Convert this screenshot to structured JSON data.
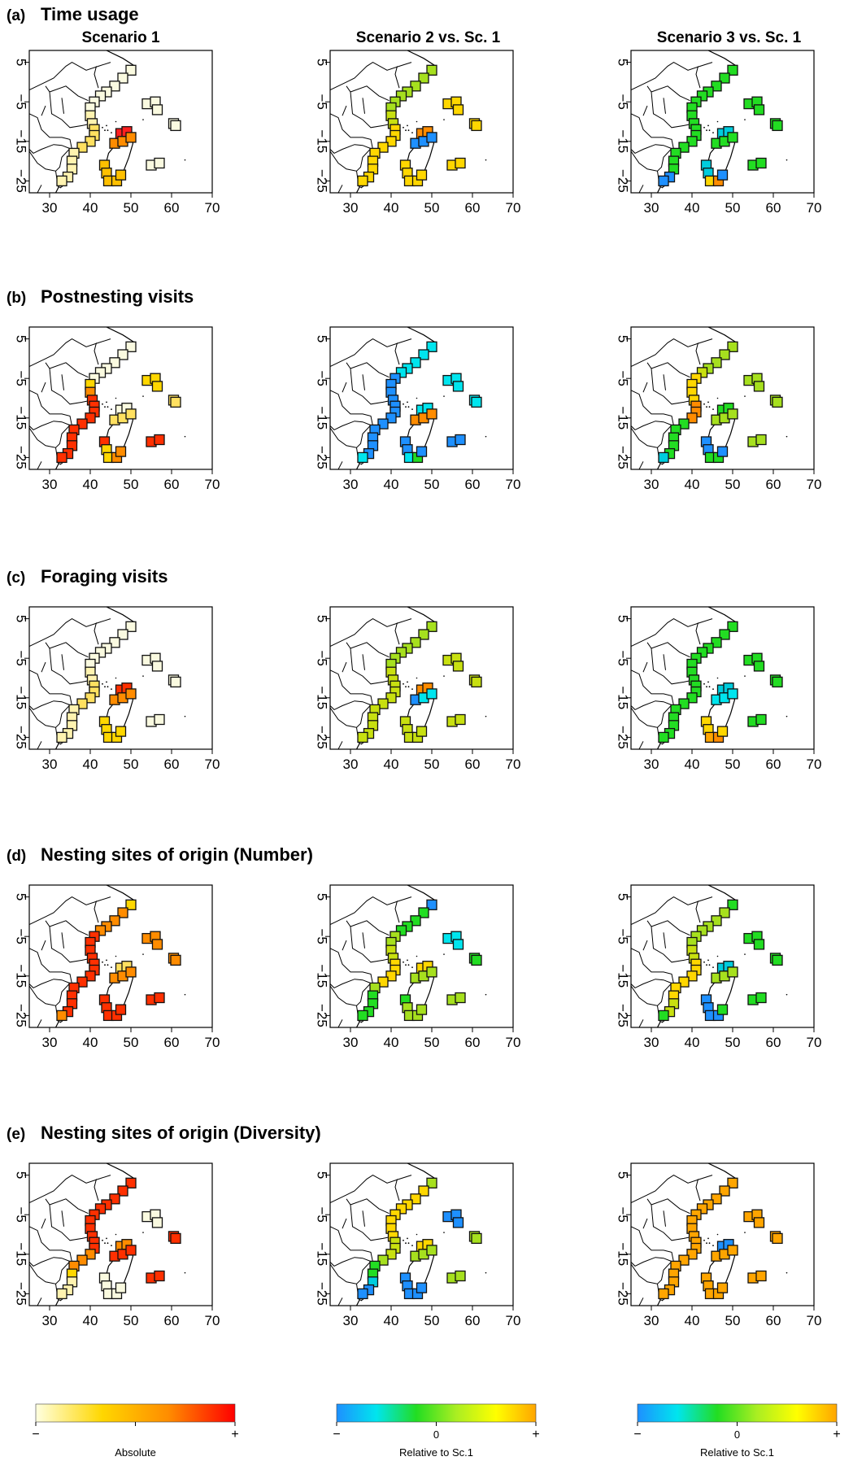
{
  "figure": {
    "column_titles": [
      "Scenario 1",
      "Scenario 2 vs. Sc. 1",
      "Scenario 3 vs. Sc. 1"
    ],
    "rows": [
      {
        "letter": "(a)",
        "title": "Time usage"
      },
      {
        "letter": "(b)",
        "title": "Postnesting visits"
      },
      {
        "letter": "(c)",
        "title": "Foraging visits"
      },
      {
        "letter": "(d)",
        "title": "Nesting sites of origin (Number)"
      },
      {
        "letter": "(e)",
        "title": "Nesting sites of origin (Diversity)"
      }
    ],
    "x_ticks": [
      "30",
      "40",
      "50",
      "60",
      "70"
    ],
    "y_ticks": [
      "5",
      "−5",
      "−15",
      "−25"
    ],
    "colorbars": [
      {
        "label": "Absolute",
        "minus": "−",
        "mid": "",
        "plus": "+",
        "colors": [
          "#ffffe0",
          "#ffd700",
          "#ff8c00",
          "#ff0000"
        ]
      },
      {
        "label": "Relative to Sc.1",
        "minus": "−",
        "mid": "0",
        "plus": "+",
        "colors": [
          "#1e90ff",
          "#00e5ee",
          "#22dd22",
          "#aaee22",
          "#ffff00",
          "#ffa500"
        ]
      },
      {
        "label": "Relative to Sc.1",
        "minus": "−",
        "mid": "0",
        "plus": "+",
        "colors": [
          "#1e90ff",
          "#00e5ee",
          "#22dd22",
          "#aaee22",
          "#ffff00",
          "#ffa500"
        ]
      }
    ]
  },
  "map_data": {
    "x_range": [
      25,
      70
    ],
    "y_range": [
      -28,
      8
    ],
    "grid_cells": [
      {
        "id": "c1",
        "lon": 50.0,
        "lat": 3.0
      },
      {
        "id": "c2",
        "lon": 48.0,
        "lat": 1.0
      },
      {
        "id": "c3",
        "lon": 46.0,
        "lat": -1.0
      },
      {
        "id": "c4",
        "lon": 44.0,
        "lat": -2.5
      },
      {
        "id": "c5",
        "lon": 42.5,
        "lat": -3.5
      },
      {
        "id": "c6",
        "lon": 41.0,
        "lat": -5.0
      },
      {
        "id": "c7",
        "lon": 40.0,
        "lat": -6.5
      },
      {
        "id": "c8",
        "lon": 40.0,
        "lat": -8.5
      },
      {
        "id": "c9",
        "lon": 40.5,
        "lat": -10.5
      },
      {
        "id": "c10",
        "lon": 41.0,
        "lat": -12.0
      },
      {
        "id": "c11",
        "lon": 41.0,
        "lat": -13.5
      },
      {
        "id": "c12",
        "lon": 40.0,
        "lat": -15.0
      },
      {
        "id": "c13",
        "lon": 38.0,
        "lat": -16.5
      },
      {
        "id": "c14",
        "lon": 36.0,
        "lat": -18.0
      },
      {
        "id": "c15",
        "lon": 35.5,
        "lat": -20.0
      },
      {
        "id": "c16",
        "lon": 35.5,
        "lat": -22.0
      },
      {
        "id": "c17",
        "lon": 34.5,
        "lat": -24.0
      },
      {
        "id": "c18",
        "lon": 33.0,
        "lat": -25.0
      },
      {
        "id": "c19",
        "lon": 43.5,
        "lat": -21.0
      },
      {
        "id": "c20",
        "lon": 44.0,
        "lat": -23.0
      },
      {
        "id": "c21",
        "lon": 44.5,
        "lat": -25.0
      },
      {
        "id": "c22",
        "lon": 46.5,
        "lat": -25.0
      },
      {
        "id": "c23",
        "lon": 47.5,
        "lat": -23.5
      },
      {
        "id": "c24",
        "lon": 47.5,
        "lat": -13.0
      },
      {
        "id": "c25",
        "lon": 49.0,
        "lat": -12.5
      },
      {
        "id": "c26",
        "lon": 46.0,
        "lat": -15.5
      },
      {
        "id": "c27",
        "lon": 48.0,
        "lat": -15.0
      },
      {
        "id": "c28",
        "lon": 50.0,
        "lat": -14.0
      },
      {
        "id": "c29",
        "lon": 54.0,
        "lat": -5.5
      },
      {
        "id": "c30",
        "lon": 56.0,
        "lat": -5.0
      },
      {
        "id": "c31",
        "lon": 56.5,
        "lat": -7.0
      },
      {
        "id": "c32",
        "lon": 60.5,
        "lat": -10.5
      },
      {
        "id": "c33",
        "lon": 61.0,
        "lat": -11.0
      },
      {
        "id": "c34",
        "lon": 55.0,
        "lat": -21.0
      },
      {
        "id": "c35",
        "lon": 57.0,
        "lat": -20.5
      }
    ],
    "panel_colors": [
      [
        [
          "#fafae0",
          "#fafae0",
          "#fafae0",
          "#fafae0",
          "#fafae0",
          "#fafae0",
          "#fafae0",
          "#fff3b0",
          "#fff3b0",
          "#ffe060",
          "#ffe060",
          "#ffe060",
          "#ffe060",
          "#fff3b0",
          "#fff3b0",
          "#fff3b0",
          "#fff3b0",
          "#fff3b0",
          "#ffc000",
          "#ffc000",
          "#ffc000",
          "#ffc000",
          "#ffc000",
          "#ff2020",
          "#ff2020",
          "#ff8c00",
          "#ff8c00",
          "#ff8c00",
          "#fafae0",
          "#fafae0",
          "#fafae0",
          "#fafae0",
          "#fafae0",
          "#fafae0",
          "#fafae0"
        ],
        [
          "#a6e01e",
          "#a6e01e",
          "#a6e01e",
          "#a6e01e",
          "#a6e01e",
          "#a6e01e",
          "#a6e01e",
          "#c8e010",
          "#c8e010",
          "#ffd700",
          "#ffd700",
          "#ffd700",
          "#ffd700",
          "#ffd700",
          "#ffd700",
          "#ffd700",
          "#ffd700",
          "#ffd700",
          "#ffd700",
          "#ffd700",
          "#ffd700",
          "#ffd700",
          "#ffd700",
          "#ff8c00",
          "#ff8c00",
          "#1e90ff",
          "#1e90ff",
          "#1e90ff",
          "#ffd700",
          "#ffd700",
          "#ffd700",
          "#ffd700",
          "#ffd700",
          "#ffd700",
          "#ffd700"
        ],
        [
          "#22dd22",
          "#22dd22",
          "#22dd22",
          "#22dd22",
          "#22dd22",
          "#22dd22",
          "#22dd22",
          "#22dd22",
          "#22dd22",
          "#22dd22",
          "#22dd22",
          "#22dd22",
          "#22dd22",
          "#22dd22",
          "#22dd22",
          "#22dd22",
          "#1e90ff",
          "#1e90ff",
          "#00ccdd",
          "#00ccdd",
          "#ffd700",
          "#ff8c00",
          "#1e90ff",
          "#00ccdd",
          "#00ccdd",
          "#22dd22",
          "#22dd22",
          "#22dd22",
          "#22dd22",
          "#22dd22",
          "#22dd22",
          "#22dd22",
          "#22dd22",
          "#22dd22",
          "#22dd22"
        ]
      ],
      [
        [
          "#fafae0",
          "#fafae0",
          "#fafae0",
          "#fafae0",
          "#fafae0",
          "#fafae0",
          "#ffd700",
          "#ff8c00",
          "#ff3000",
          "#ff3000",
          "#ff3000",
          "#ff3000",
          "#ff3000",
          "#ff3000",
          "#ff3000",
          "#ff3000",
          "#ff3000",
          "#ff3000",
          "#ff3000",
          "#ffd700",
          "#ffd700",
          "#ff8c00",
          "#ff8c00",
          "#fafae0",
          "#fafae0",
          "#ffe060",
          "#ffe060",
          "#ffe060",
          "#ffd700",
          "#ffd700",
          "#ffd700",
          "#ffe060",
          "#ffe060",
          "#ff3000",
          "#ff3000"
        ],
        [
          "#00e5ee",
          "#00e5ee",
          "#00e5ee",
          "#00e5ee",
          "#00e5ee",
          "#1e90ff",
          "#1e90ff",
          "#1e90ff",
          "#1e90ff",
          "#1e90ff",
          "#1e90ff",
          "#1e90ff",
          "#1e90ff",
          "#1e90ff",
          "#1e90ff",
          "#1e90ff",
          "#1e90ff",
          "#00e5ee",
          "#1e90ff",
          "#1e90ff",
          "#00e5ee",
          "#22dd22",
          "#1e90ff",
          "#00e5ee",
          "#00e5ee",
          "#ff8c00",
          "#ff8c00",
          "#ff8c00",
          "#00e5ee",
          "#00e5ee",
          "#00e5ee",
          "#00e5ee",
          "#00e5ee",
          "#1e90ff",
          "#1e90ff"
        ],
        [
          "#a6e01e",
          "#a6e01e",
          "#a6e01e",
          "#a6e01e",
          "#c8e010",
          "#ffd700",
          "#ffd700",
          "#ffd700",
          "#ffd700",
          "#ff8c00",
          "#ff8c00",
          "#ff8c00",
          "#22dd22",
          "#22dd22",
          "#22dd22",
          "#22dd22",
          "#22dd22",
          "#00ccdd",
          "#1e90ff",
          "#1e90ff",
          "#22dd22",
          "#22dd22",
          "#1e90ff",
          "#22dd22",
          "#22dd22",
          "#a6e01e",
          "#a6e01e",
          "#a6e01e",
          "#a6e01e",
          "#a6e01e",
          "#a6e01e",
          "#a6e01e",
          "#a6e01e",
          "#a6e01e",
          "#a6e01e"
        ]
      ],
      [
        [
          "#fafae0",
          "#fafae0",
          "#fafae0",
          "#fafae0",
          "#fafae0",
          "#fafae0",
          "#fafae0",
          "#fff3b0",
          "#fff3b0",
          "#ffe060",
          "#ffe060",
          "#ffe060",
          "#ffe060",
          "#fff3b0",
          "#fff3b0",
          "#fff3b0",
          "#fff3b0",
          "#fff3b0",
          "#ffd700",
          "#ffd700",
          "#ffd700",
          "#ffd700",
          "#ffd700",
          "#ff3000",
          "#ff3000",
          "#ff8c00",
          "#ff8c00",
          "#ff8c00",
          "#fafae0",
          "#fafae0",
          "#fafae0",
          "#fafae0",
          "#fafae0",
          "#fafae0",
          "#fafae0"
        ],
        [
          "#a6e01e",
          "#a6e01e",
          "#a6e01e",
          "#a6e01e",
          "#a6e01e",
          "#a6e01e",
          "#a6e01e",
          "#c8e010",
          "#c8e010",
          "#c8e010",
          "#c8e010",
          "#c8e010",
          "#c8e010",
          "#c8e010",
          "#c8e010",
          "#c8e010",
          "#c8e010",
          "#c8e010",
          "#c8e010",
          "#c8e010",
          "#c8e010",
          "#c8e010",
          "#c8e010",
          "#ff8c00",
          "#ff8c00",
          "#1e90ff",
          "#00e5ee",
          "#00e5ee",
          "#c8e010",
          "#c8e010",
          "#c8e010",
          "#c8e010",
          "#c8e010",
          "#c8e010",
          "#c8e010"
        ],
        [
          "#22dd22",
          "#22dd22",
          "#22dd22",
          "#22dd22",
          "#22dd22",
          "#22dd22",
          "#22dd22",
          "#22dd22",
          "#22dd22",
          "#22dd22",
          "#22dd22",
          "#22dd22",
          "#22dd22",
          "#22dd22",
          "#22dd22",
          "#22dd22",
          "#22dd22",
          "#22dd22",
          "#ffd700",
          "#ffd700",
          "#ffa500",
          "#ff8c00",
          "#ffd700",
          "#00ccdd",
          "#00ccdd",
          "#00e5ee",
          "#00e5ee",
          "#00e5ee",
          "#22dd22",
          "#22dd22",
          "#22dd22",
          "#22dd22",
          "#22dd22",
          "#22dd22",
          "#22dd22"
        ]
      ],
      [
        [
          "#ffd700",
          "#ff8c00",
          "#ff8c00",
          "#ff8c00",
          "#ff8c00",
          "#ff3000",
          "#ff3000",
          "#ff3000",
          "#ff3000",
          "#ff3000",
          "#ff3000",
          "#ff3000",
          "#ff3000",
          "#ff3000",
          "#ff3000",
          "#ff3000",
          "#ff3000",
          "#ff8c00",
          "#ff3000",
          "#ff3000",
          "#ff3000",
          "#ff3000",
          "#ff3000",
          "#ffe060",
          "#ffe060",
          "#ff8c00",
          "#ff8c00",
          "#ff8c00",
          "#ff8c00",
          "#ff8c00",
          "#ff8c00",
          "#ff8c00",
          "#ff8c00",
          "#ff3000",
          "#ff3000"
        ],
        [
          "#1e90ff",
          "#22dd22",
          "#22dd22",
          "#22dd22",
          "#22dd22",
          "#a6e01e",
          "#a6e01e",
          "#c8e010",
          "#c8e010",
          "#ffd700",
          "#ffd700",
          "#ffd700",
          "#ffd700",
          "#a6e01e",
          "#22dd22",
          "#22dd22",
          "#22dd22",
          "#22dd22",
          "#22dd22",
          "#a6e01e",
          "#a6e01e",
          "#a6e01e",
          "#a6e01e",
          "#ffd700",
          "#ffd700",
          "#a6e01e",
          "#a6e01e",
          "#a6e01e",
          "#00e5ee",
          "#00e5ee",
          "#00e5ee",
          "#22dd22",
          "#22dd22",
          "#a6e01e",
          "#a6e01e"
        ],
        [
          "#22dd22",
          "#a6e01e",
          "#a6e01e",
          "#a6e01e",
          "#a6e01e",
          "#a6e01e",
          "#a6e01e",
          "#c8e010",
          "#c8e010",
          "#ffd700",
          "#ffd700",
          "#ffd700",
          "#ffd700",
          "#ffd700",
          "#ffd700",
          "#c8e010",
          "#c8e010",
          "#22dd22",
          "#1e90ff",
          "#1e90ff",
          "#1e90ff",
          "#1e90ff",
          "#22dd22",
          "#00ccdd",
          "#00ccdd",
          "#a6e01e",
          "#a6e01e",
          "#a6e01e",
          "#22dd22",
          "#22dd22",
          "#22dd22",
          "#22dd22",
          "#22dd22",
          "#22dd22",
          "#22dd22"
        ]
      ],
      [
        [
          "#ff3000",
          "#ff3000",
          "#ff3000",
          "#ff3000",
          "#ff3000",
          "#ff3000",
          "#ff3000",
          "#ff3000",
          "#ff3000",
          "#ff3000",
          "#ff3000",
          "#ff8c00",
          "#ff8c00",
          "#ff8c00",
          "#ffd700",
          "#fff3b0",
          "#fff3b0",
          "#fff3b0",
          "#fafae0",
          "#fafae0",
          "#fafae0",
          "#fafae0",
          "#fafae0",
          "#ff8c00",
          "#ff8c00",
          "#ff3000",
          "#ff3000",
          "#ff3000",
          "#fafae0",
          "#fafae0",
          "#fafae0",
          "#ff3000",
          "#ff3000",
          "#ff3000",
          "#ff3000"
        ],
        [
          "#a6e01e",
          "#ffd700",
          "#ffd700",
          "#ffd700",
          "#ffd700",
          "#ffd700",
          "#ffd700",
          "#ffd700",
          "#ffd700",
          "#c8e010",
          "#c8e010",
          "#c8e010",
          "#a6e01e",
          "#22dd22",
          "#22dd22",
          "#00ccdd",
          "#1e90ff",
          "#1e90ff",
          "#1e90ff",
          "#1e90ff",
          "#1e90ff",
          "#1e90ff",
          "#1e90ff",
          "#ffd700",
          "#ffd700",
          "#a6e01e",
          "#a6e01e",
          "#a6e01e",
          "#1e90ff",
          "#1e90ff",
          "#1e90ff",
          "#a6e01e",
          "#a6e01e",
          "#a6e01e",
          "#a6e01e"
        ],
        [
          "#ffa500",
          "#ffa500",
          "#ffa500",
          "#ffa500",
          "#ffa500",
          "#ffa500",
          "#ffa500",
          "#ffa500",
          "#ffa500",
          "#ffa500",
          "#ffa500",
          "#ffa500",
          "#ffa500",
          "#ffa500",
          "#ffa500",
          "#ffa500",
          "#ffa500",
          "#ffa500",
          "#ffa500",
          "#ffa500",
          "#ffa500",
          "#ffa500",
          "#ffa500",
          "#1e90ff",
          "#1e90ff",
          "#ffa500",
          "#ffa500",
          "#ffa500",
          "#ffa500",
          "#ffa500",
          "#ffa500",
          "#ffa500",
          "#ffa500",
          "#ffa500",
          "#ffa500"
        ]
      ]
    ]
  }
}
